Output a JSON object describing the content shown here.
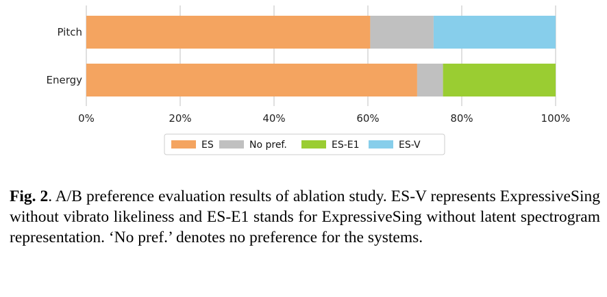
{
  "chart_data": {
    "type": "bar",
    "orientation": "horizontal",
    "stacked": true,
    "categories": [
      "Pitch",
      "Energy"
    ],
    "series": [
      {
        "name": "ES",
        "values": [
          60.5,
          70.5
        ],
        "color": "#f4a460"
      },
      {
        "name": "No pref.",
        "values": [
          13.5,
          5.5
        ],
        "color": "#c0c0c0"
      },
      {
        "name": "ES-E1",
        "values": [
          0,
          24
        ],
        "color": "#9acd32"
      },
      {
        "name": "ES-V",
        "values": [
          26,
          0
        ],
        "color": "#87ceeb"
      }
    ],
    "xlim": [
      0,
      100
    ],
    "xticks": [
      "0%",
      "20%",
      "40%",
      "60%",
      "80%",
      "100%"
    ],
    "grid": true,
    "legend_placement": "bottom-center"
  },
  "caption": {
    "label": "Fig. 2",
    "text": ". A/B preference evaluation results of ablation study. ES-V represents ExpressiveSing without vibrato likeliness and ES-E1 stands for ExpressiveSing without latent spectrogram representation. ‘No pref.’ denotes no preference for the systems."
  }
}
